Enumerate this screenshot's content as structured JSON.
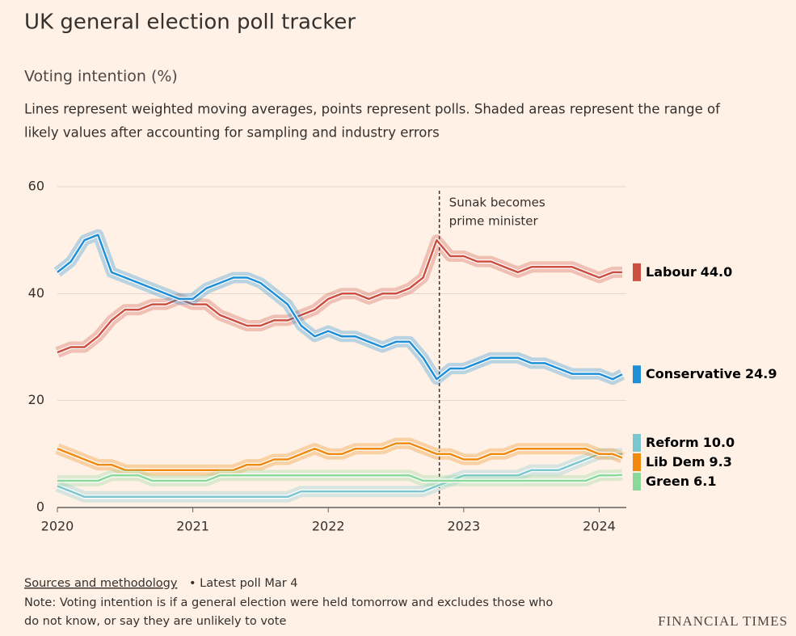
{
  "chart_data": {
    "type": "line",
    "title": "UK general election poll tracker",
    "subtitle": "Voting intention (%)",
    "description": [
      "Lines represent weighted moving averages, points represent polls. Shaded areas represent the range of",
      "likely values after accounting for sampling and industry errors"
    ],
    "x": [
      2020.0,
      2020.1,
      2020.2,
      2020.3,
      2020.4,
      2020.5,
      2020.6,
      2020.7,
      2020.8,
      2020.9,
      2021.0,
      2021.1,
      2021.2,
      2021.3,
      2021.4,
      2021.5,
      2021.6,
      2021.7,
      2021.8,
      2021.9,
      2022.0,
      2022.1,
      2022.2,
      2022.3,
      2022.4,
      2022.5,
      2022.6,
      2022.7,
      2022.8,
      2022.9,
      2023.0,
      2023.1,
      2023.2,
      2023.3,
      2023.4,
      2023.5,
      2023.6,
      2023.7,
      2023.8,
      2023.9,
      2024.0,
      2024.1,
      2024.17
    ],
    "xlim": [
      2020,
      2024.2
    ],
    "xticks": [
      2020,
      2021,
      2022,
      2023,
      2024
    ],
    "ylim": [
      0,
      60
    ],
    "yticks": [
      0,
      20,
      40,
      60
    ],
    "grid": true,
    "series": [
      {
        "name": "Labour",
        "color": "#cc4f41",
        "values": [
          29,
          30,
          30,
          32,
          35,
          37,
          37,
          38,
          38,
          39,
          38,
          38,
          36,
          35,
          34,
          34,
          35,
          35,
          36,
          37,
          39,
          40,
          40,
          39,
          40,
          40,
          41,
          43,
          50,
          47,
          47,
          46,
          46,
          45,
          44,
          45,
          45,
          45,
          45,
          44,
          43,
          44,
          44.0
        ],
        "value_labels": [
          null,
          null,
          null,
          null,
          null,
          null,
          null,
          null,
          null,
          null,
          null,
          null,
          null,
          null,
          null,
          null,
          null,
          null,
          null,
          null,
          null,
          null,
          null,
          null,
          null,
          null,
          null,
          null,
          null,
          null,
          null,
          null,
          null,
          null,
          null,
          null,
          null,
          null,
          null,
          null,
          null,
          null,
          "44.0"
        ]
      },
      {
        "name": "Conservative",
        "color": "#1e8fd6",
        "values": [
          44,
          46,
          50,
          51,
          44,
          43,
          42,
          41,
          40,
          39,
          39,
          41,
          42,
          43,
          43,
          42,
          40,
          38,
          34,
          32,
          33,
          32,
          32,
          31,
          30,
          31,
          31,
          28,
          24,
          26,
          26,
          27,
          28,
          28,
          28,
          27,
          27,
          26,
          25,
          25,
          25,
          24,
          24.9
        ]
      },
      {
        "name": "Reform",
        "color": "#7cc6d0",
        "values": [
          4,
          3,
          2,
          2,
          2,
          2,
          2,
          2,
          2,
          2,
          2,
          2,
          2,
          2,
          2,
          2,
          2,
          2,
          3,
          3,
          3,
          3,
          3,
          3,
          3,
          3,
          3,
          3,
          4,
          5,
          6,
          6,
          6,
          6,
          6,
          7,
          7,
          7,
          8,
          9,
          10,
          10,
          10.0
        ],
        "value_labels": [
          null,
          null,
          null,
          null,
          null,
          null,
          null,
          null,
          null,
          null,
          null,
          null,
          null,
          null,
          null,
          null,
          null,
          null,
          null,
          null,
          null,
          null,
          null,
          null,
          null,
          null,
          null,
          null,
          null,
          null,
          null,
          null,
          null,
          null,
          null,
          null,
          null,
          null,
          null,
          null,
          null,
          null,
          "10.0"
        ]
      },
      {
        "name": "Lib Dem",
        "color": "#f0890e",
        "values": [
          11,
          10,
          9,
          8,
          8,
          7,
          7,
          7,
          7,
          7,
          7,
          7,
          7,
          7,
          8,
          8,
          9,
          9,
          10,
          11,
          10,
          10,
          11,
          11,
          11,
          12,
          12,
          11,
          10,
          10,
          9,
          9,
          10,
          10,
          11,
          11,
          11,
          11,
          11,
          11,
          10,
          10,
          9.3
        ]
      },
      {
        "name": "Green",
        "color": "#8ad89a",
        "values": [
          5,
          5,
          5,
          5,
          6,
          6,
          6,
          5,
          5,
          5,
          5,
          5,
          6,
          6,
          6,
          6,
          6,
          6,
          6,
          6,
          6,
          6,
          6,
          6,
          6,
          6,
          6,
          5,
          5,
          5,
          5,
          5,
          5,
          5,
          5,
          5,
          5,
          5,
          5,
          5,
          6,
          6,
          6.1
        ]
      }
    ],
    "annotation": {
      "x": 2022.82,
      "text": [
        "Sunak becomes",
        "prime minister"
      ]
    },
    "footer": {
      "link": "Sources and methodology",
      "latest": "• Latest poll Mar 4",
      "note": [
        "Note: Voting intention is if a general election were held tomorrow and excludes those who",
        "do not know, or say they are unlikely to vote"
      ],
      "logo": "FINANCIAL TIMES"
    }
  }
}
